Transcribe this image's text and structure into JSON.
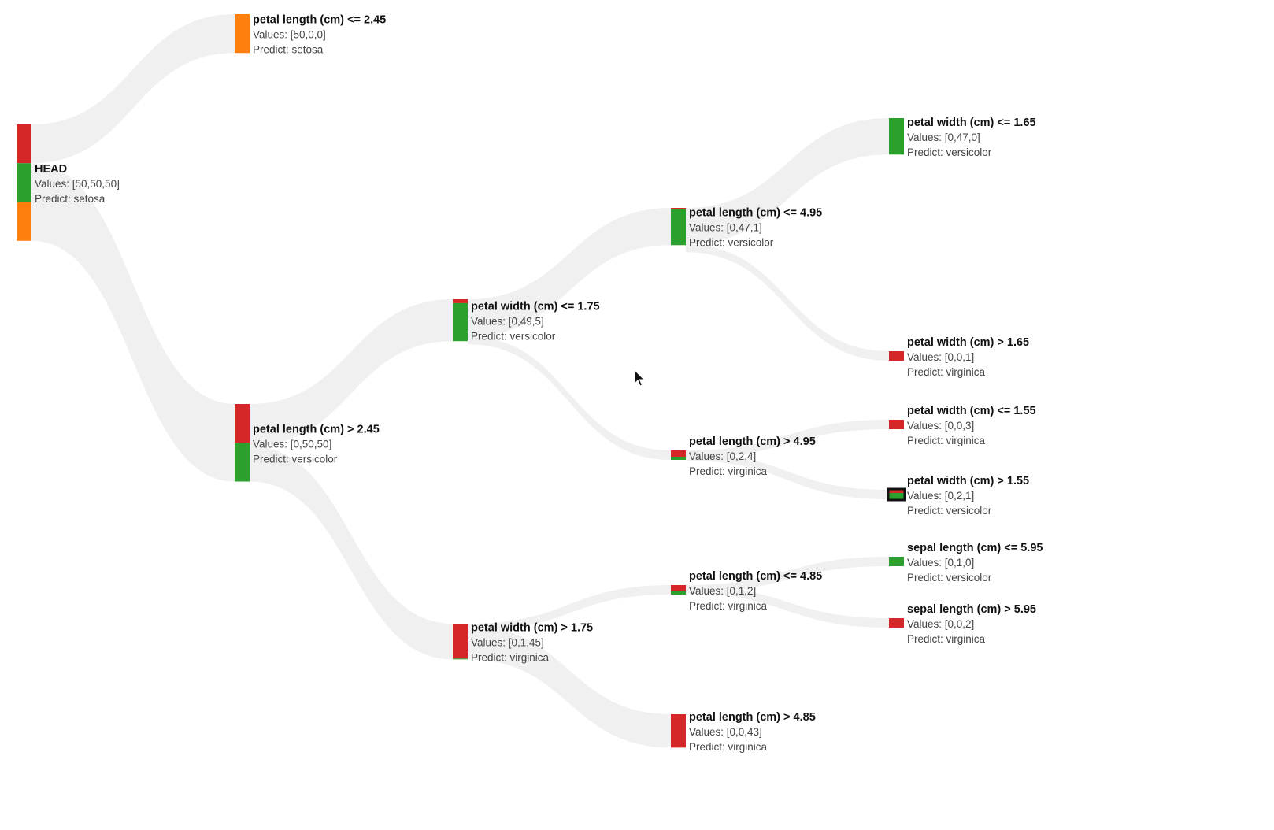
{
  "colors": {
    "setosa": "#ff7f0e",
    "versicolor": "#2ca02c",
    "virginica": "#d62728",
    "link": "#efefef",
    "selected_outline": "#111111"
  },
  "class_order": [
    "virginica",
    "versicolor",
    "setosa"
  ],
  "nodes": [
    {
      "id": "head",
      "title": "HEAD",
      "values_text": "Values: [50,50,50]",
      "predict_text": "Predict: setosa",
      "counts": {
        "setosa": 50,
        "versicolor": 50,
        "virginica": 50
      }
    },
    {
      "id": "pl-le-2-45",
      "title": "petal length (cm) <= 2.45",
      "values_text": "Values: [50,0,0]",
      "predict_text": "Predict: setosa",
      "counts": {
        "setosa": 50,
        "versicolor": 0,
        "virginica": 0
      }
    },
    {
      "id": "pl-gt-2-45",
      "title": "petal length (cm) > 2.45",
      "values_text": "Values: [0,50,50]",
      "predict_text": "Predict: versicolor",
      "counts": {
        "setosa": 0,
        "versicolor": 50,
        "virginica": 50
      }
    },
    {
      "id": "pw-le-1-75",
      "title": "petal width (cm) <= 1.75",
      "values_text": "Values: [0,49,5]",
      "predict_text": "Predict: versicolor",
      "counts": {
        "setosa": 0,
        "versicolor": 49,
        "virginica": 5
      }
    },
    {
      "id": "pw-gt-1-75",
      "title": "petal width (cm) > 1.75",
      "values_text": "Values: [0,1,45]",
      "predict_text": "Predict: virginica",
      "counts": {
        "setosa": 0,
        "versicolor": 1,
        "virginica": 45
      }
    },
    {
      "id": "pl-le-4-95",
      "title": "petal length (cm) <= 4.95",
      "values_text": "Values: [0,47,1]",
      "predict_text": "Predict: versicolor",
      "counts": {
        "setosa": 0,
        "versicolor": 47,
        "virginica": 1
      }
    },
    {
      "id": "pl-gt-4-95",
      "title": "petal length (cm) > 4.95",
      "values_text": "Values: [0,2,4]",
      "predict_text": "Predict: virginica",
      "counts": {
        "setosa": 0,
        "versicolor": 2,
        "virginica": 4
      }
    },
    {
      "id": "pl-le-4-85",
      "title": "petal length (cm) <= 4.85",
      "values_text": "Values: [0,1,2]",
      "predict_text": "Predict: virginica",
      "counts": {
        "setosa": 0,
        "versicolor": 1,
        "virginica": 2
      }
    },
    {
      "id": "pl-gt-4-85",
      "title": "petal length (cm) > 4.85",
      "values_text": "Values: [0,0,43]",
      "predict_text": "Predict: virginica",
      "counts": {
        "setosa": 0,
        "versicolor": 0,
        "virginica": 43
      }
    },
    {
      "id": "pw-le-1-65",
      "title": "petal width (cm) <= 1.65",
      "values_text": "Values: [0,47,0]",
      "predict_text": "Predict: versicolor",
      "counts": {
        "setosa": 0,
        "versicolor": 47,
        "virginica": 0
      }
    },
    {
      "id": "pw-gt-1-65",
      "title": "petal width (cm) > 1.65",
      "values_text": "Values: [0,0,1]",
      "predict_text": "Predict: virginica",
      "counts": {
        "setosa": 0,
        "versicolor": 0,
        "virginica": 1
      }
    },
    {
      "id": "pw-le-1-55",
      "title": "petal width (cm) <= 1.55",
      "values_text": "Values: [0,0,3]",
      "predict_text": "Predict: virginica",
      "counts": {
        "setosa": 0,
        "versicolor": 0,
        "virginica": 3
      }
    },
    {
      "id": "pw-gt-1-55",
      "title": "petal width (cm) > 1.55",
      "values_text": "Values: [0,2,1]",
      "predict_text": "Predict: versicolor",
      "counts": {
        "setosa": 0,
        "versicolor": 2,
        "virginica": 1
      },
      "selected": true
    },
    {
      "id": "sl-le-5-95",
      "title": "sepal length (cm) <= 5.95",
      "values_text": "Values: [0,1,0]",
      "predict_text": "Predict: versicolor",
      "counts": {
        "setosa": 0,
        "versicolor": 1,
        "virginica": 0
      }
    },
    {
      "id": "sl-gt-5-95",
      "title": "sepal length (cm) > 5.95",
      "values_text": "Values: [0,0,2]",
      "predict_text": "Predict: virginica",
      "counts": {
        "setosa": 0,
        "versicolor": 0,
        "virginica": 2
      }
    }
  ],
  "links": [
    [
      "head",
      "pl-le-2-45"
    ],
    [
      "head",
      "pl-gt-2-45"
    ],
    [
      "pl-gt-2-45",
      "pw-le-1-75"
    ],
    [
      "pl-gt-2-45",
      "pw-gt-1-75"
    ],
    [
      "pw-le-1-75",
      "pl-le-4-95"
    ],
    [
      "pw-le-1-75",
      "pl-gt-4-95"
    ],
    [
      "pw-gt-1-75",
      "pl-le-4-85"
    ],
    [
      "pw-gt-1-75",
      "pl-gt-4-85"
    ],
    [
      "pl-le-4-95",
      "pw-le-1-65"
    ],
    [
      "pl-le-4-95",
      "pw-gt-1-65"
    ],
    [
      "pl-gt-4-95",
      "pw-le-1-55"
    ],
    [
      "pl-gt-4-95",
      "pw-gt-1-55"
    ],
    [
      "pl-le-4-85",
      "sl-le-5-95"
    ],
    [
      "pl-le-4-85",
      "sl-gt-5-95"
    ]
  ]
}
